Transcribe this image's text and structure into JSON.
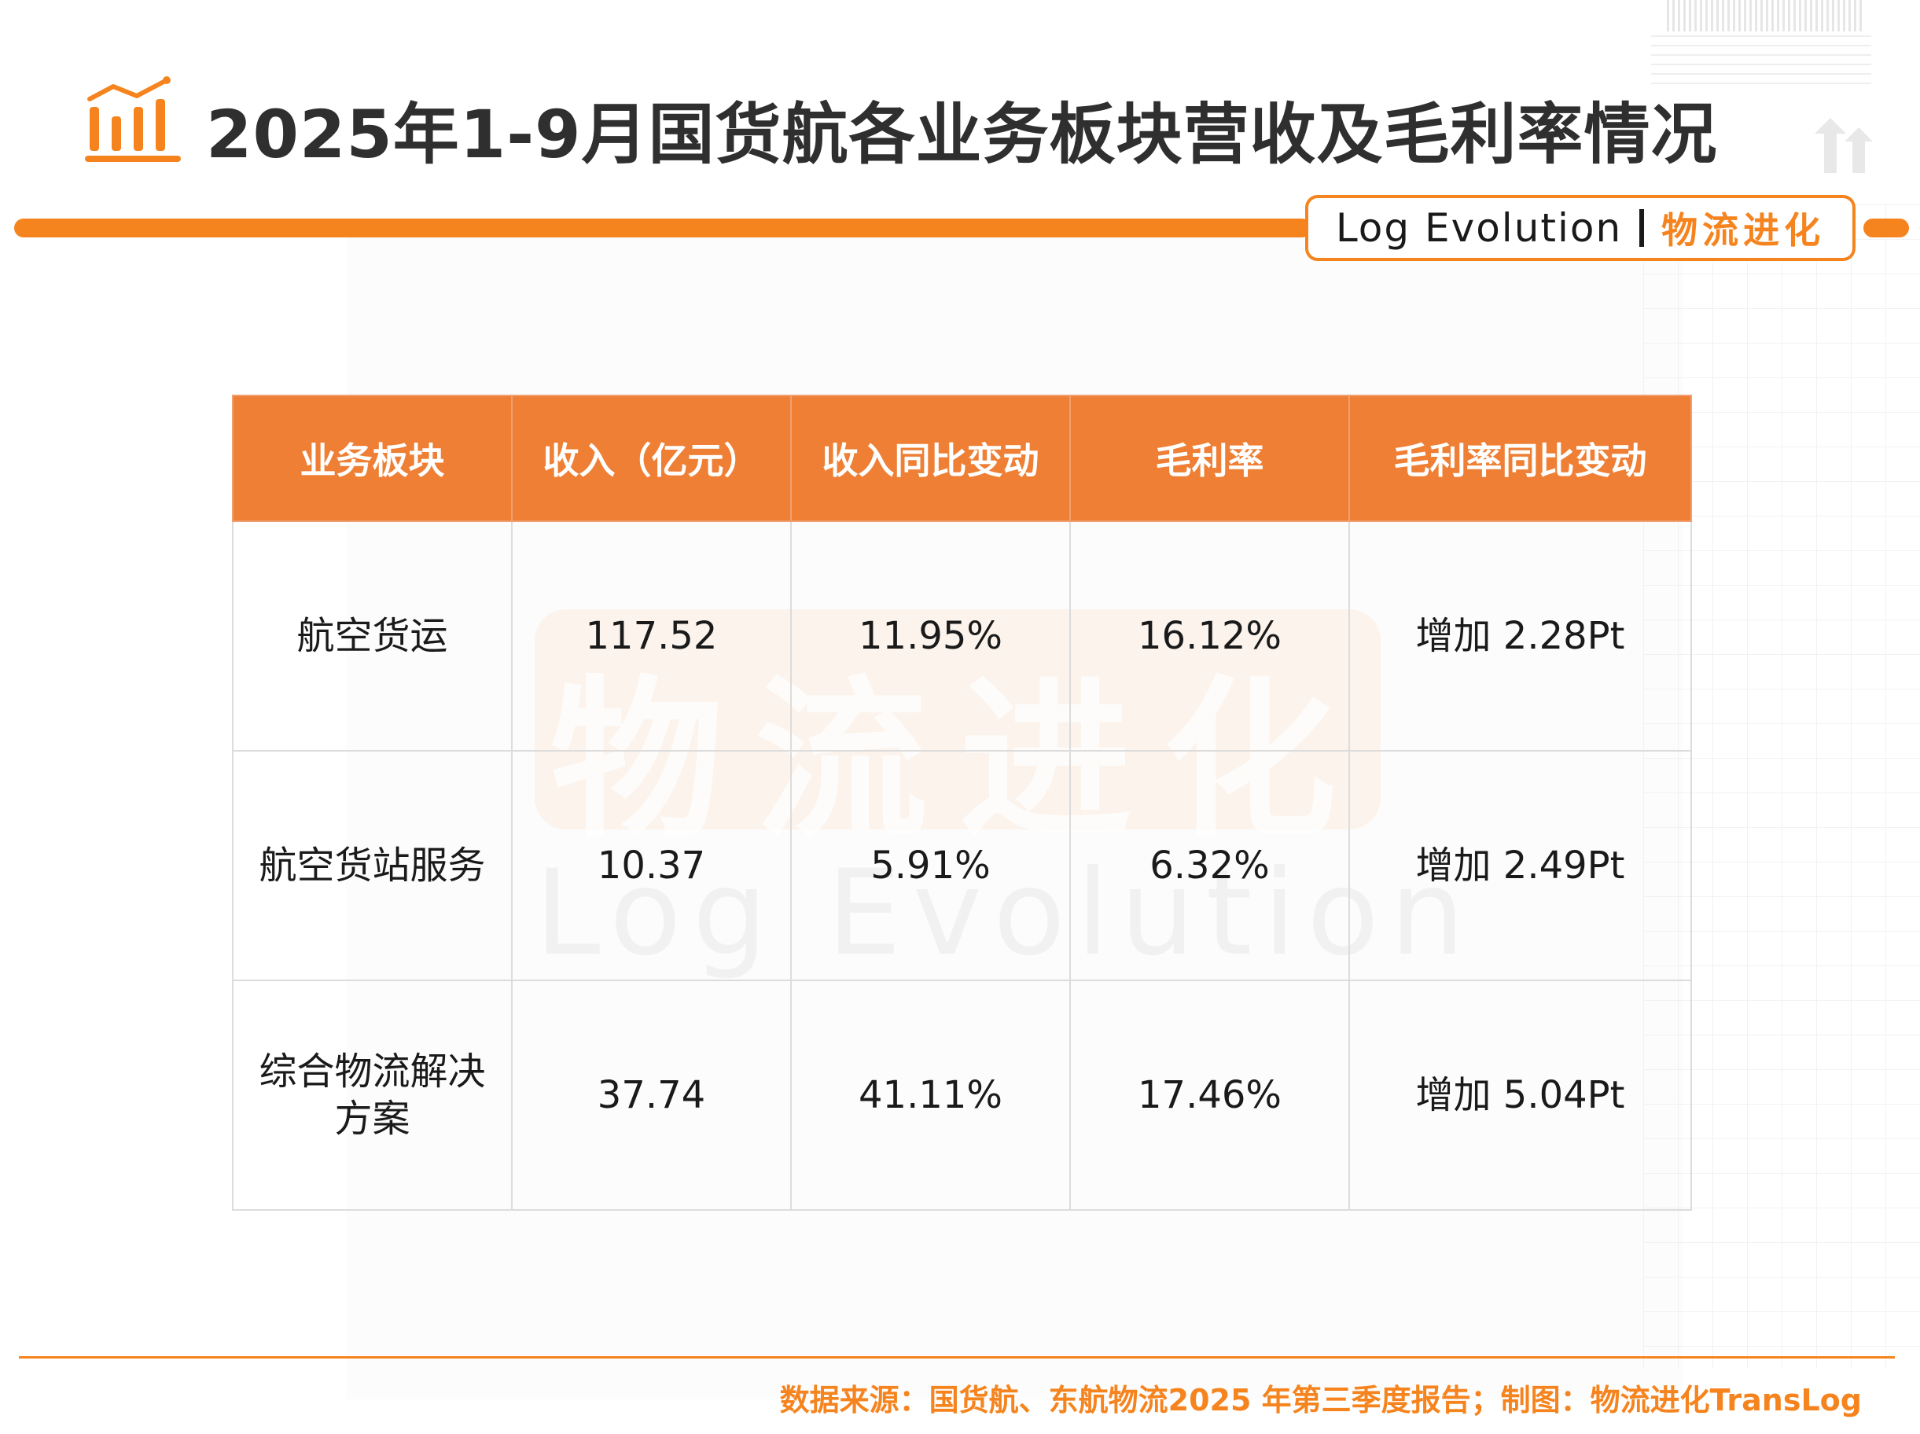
{
  "header": {
    "title": "2025年1-9月国货航各业务板块营收及毛利率情况",
    "brand_en": "Log Evolution",
    "brand_cn": "物流进化"
  },
  "watermark": {
    "cn": "物流进化",
    "en": "Log Evolution"
  },
  "table": {
    "columns": [
      "业务板块",
      "收入（亿元）",
      "收入同比变动",
      "毛利率",
      "毛利率同比变动"
    ],
    "rows": [
      [
        "航空货运",
        "117.52",
        "11.95%",
        "16.12%",
        "增加 2.28Pt"
      ],
      [
        "航空货站服务",
        "10.37",
        "5.91%",
        "6.32%",
        "增加 2.49Pt"
      ],
      [
        "综合物流解决方案",
        "37.74",
        "41.11%",
        "17.46%",
        "增加 5.04Pt"
      ]
    ]
  },
  "footer": {
    "source": "数据来源：国货航、东航物流2025 年第三季度报告；制图：物流进化TransLog"
  },
  "colors": {
    "accent": "#f5841f",
    "table_header": "#ee7f34"
  }
}
